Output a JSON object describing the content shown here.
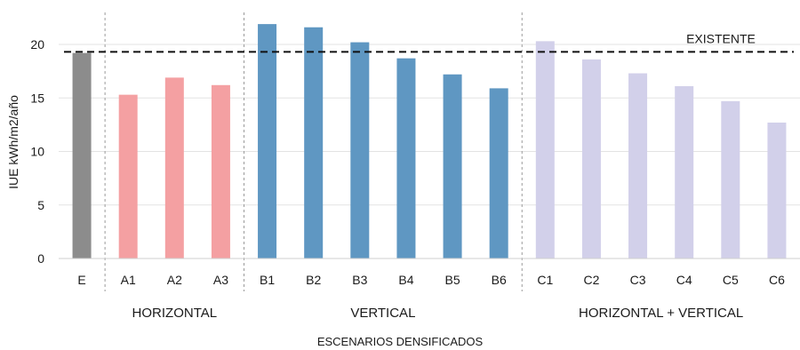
{
  "chart_data": {
    "type": "bar",
    "title": "",
    "xlabel": "ESCENARIOS DENSIFICADOS",
    "ylabel": "IUE  kWh/m2/año",
    "ylim": [
      0,
      22
    ],
    "yticks": [
      0,
      5,
      10,
      15,
      20
    ],
    "grid": true,
    "categories": [
      "E",
      "A1",
      "A2",
      "A3",
      "B1",
      "B2",
      "B3",
      "B4",
      "B5",
      "B6",
      "C1",
      "C2",
      "C3",
      "C4",
      "C5",
      "C6"
    ],
    "values": [
      19.2,
      15.3,
      16.9,
      16.2,
      21.9,
      21.6,
      20.2,
      18.7,
      17.2,
      15.9,
      20.3,
      18.6,
      17.3,
      16.1,
      14.7,
      12.7
    ],
    "bar_colors": [
      "#8c8c8c",
      "#f4a0a2",
      "#f4a0a2",
      "#f4a0a2",
      "#5f97c2",
      "#5f97c2",
      "#5f97c2",
      "#5f97c2",
      "#5f97c2",
      "#5f97c2",
      "#d2d0ea",
      "#d2d0ea",
      "#d2d0ea",
      "#d2d0ea",
      "#d2d0ea",
      "#d2d0ea"
    ],
    "groups": [
      {
        "label": "HORIZONTAL",
        "categories": [
          "A1",
          "A2",
          "A3"
        ]
      },
      {
        "label": "VERTICAL",
        "categories": [
          "B1",
          "B2",
          "B3",
          "B4",
          "B5",
          "B6"
        ]
      },
      {
        "label": "HORIZONTAL + VERTICAL",
        "categories": [
          "C1",
          "C2",
          "C3",
          "C4",
          "C5",
          "C6"
        ]
      }
    ],
    "reference_line": {
      "label": "EXISTENTE",
      "value": 19.3
    }
  }
}
